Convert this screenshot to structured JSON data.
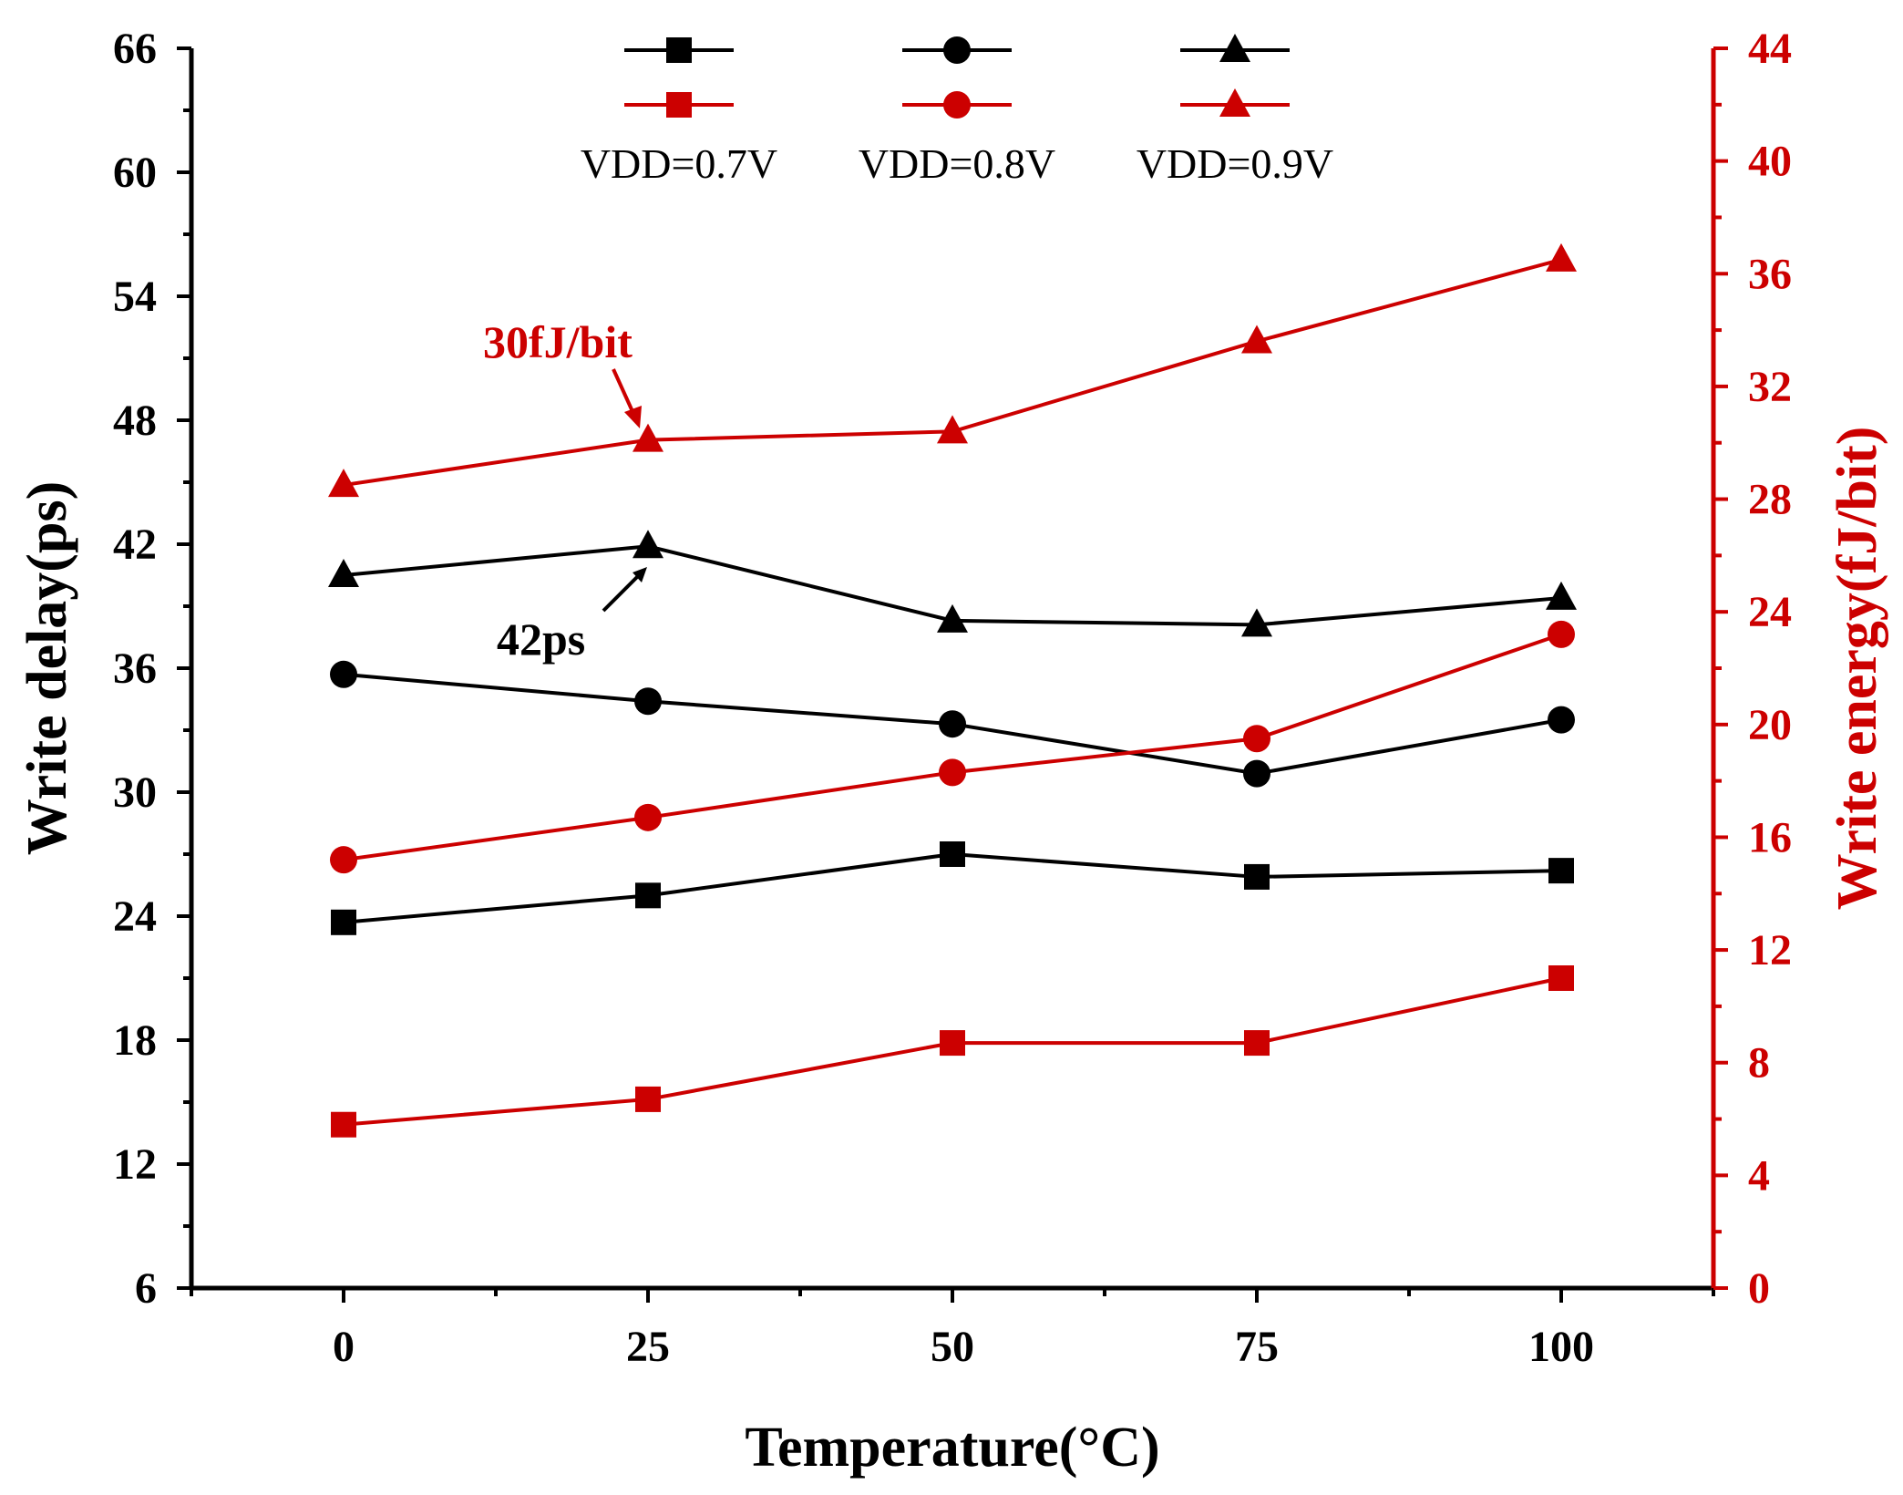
{
  "chart_data": {
    "type": "line",
    "x": [
      0,
      25,
      50,
      75,
      100
    ],
    "xlabel": "Temperature(°C)",
    "ylabel": "Write delay(ps)",
    "y2label": "Write energy(fJ/bit)",
    "xlim": [
      -12.5,
      112.5
    ],
    "ylim": [
      6,
      66
    ],
    "y2lim": [
      0,
      44
    ],
    "xticks": [
      0,
      25,
      50,
      75,
      100
    ],
    "yticks": [
      6,
      12,
      18,
      24,
      30,
      36,
      42,
      48,
      54,
      60,
      66
    ],
    "y2ticks": [
      0,
      4,
      8,
      12,
      16,
      20,
      24,
      28,
      32,
      36,
      40,
      44
    ],
    "grid": false,
    "colors": {
      "delay": "#000000",
      "energy": "#cc0000"
    },
    "series": [
      {
        "name": "VDD=0.7V delay",
        "axis": "left",
        "marker": "square",
        "color": "#000000",
        "values": [
          23.7,
          25.0,
          27.0,
          25.9,
          26.2
        ]
      },
      {
        "name": "VDD=0.8V delay",
        "axis": "left",
        "marker": "circle",
        "color": "#000000",
        "values": [
          35.7,
          34.4,
          33.3,
          30.9,
          33.5
        ]
      },
      {
        "name": "VDD=0.9V delay",
        "axis": "left",
        "marker": "triangle",
        "color": "#000000",
        "values": [
          40.5,
          41.9,
          38.3,
          38.1,
          39.4
        ]
      },
      {
        "name": "VDD=0.7V energy",
        "axis": "right",
        "marker": "square",
        "color": "#cc0000",
        "values": [
          5.8,
          6.7,
          8.7,
          8.7,
          11.0
        ]
      },
      {
        "name": "VDD=0.8V energy",
        "axis": "right",
        "marker": "circle",
        "color": "#cc0000",
        "values": [
          15.2,
          16.7,
          18.3,
          19.5,
          23.2
        ]
      },
      {
        "name": "VDD=0.9V energy",
        "axis": "right",
        "marker": "triangle",
        "color": "#cc0000",
        "values": [
          28.5,
          30.1,
          30.4,
          33.6,
          36.5
        ]
      }
    ],
    "legend": {
      "position": "top-center",
      "labels": [
        "VDD=0.7V",
        "VDD=0.8V",
        "VDD=0.9V"
      ]
    },
    "annotations": [
      {
        "text": "30fJ/bit",
        "color": "#cc0000"
      },
      {
        "text": "42ps",
        "color": "#000000"
      }
    ]
  }
}
